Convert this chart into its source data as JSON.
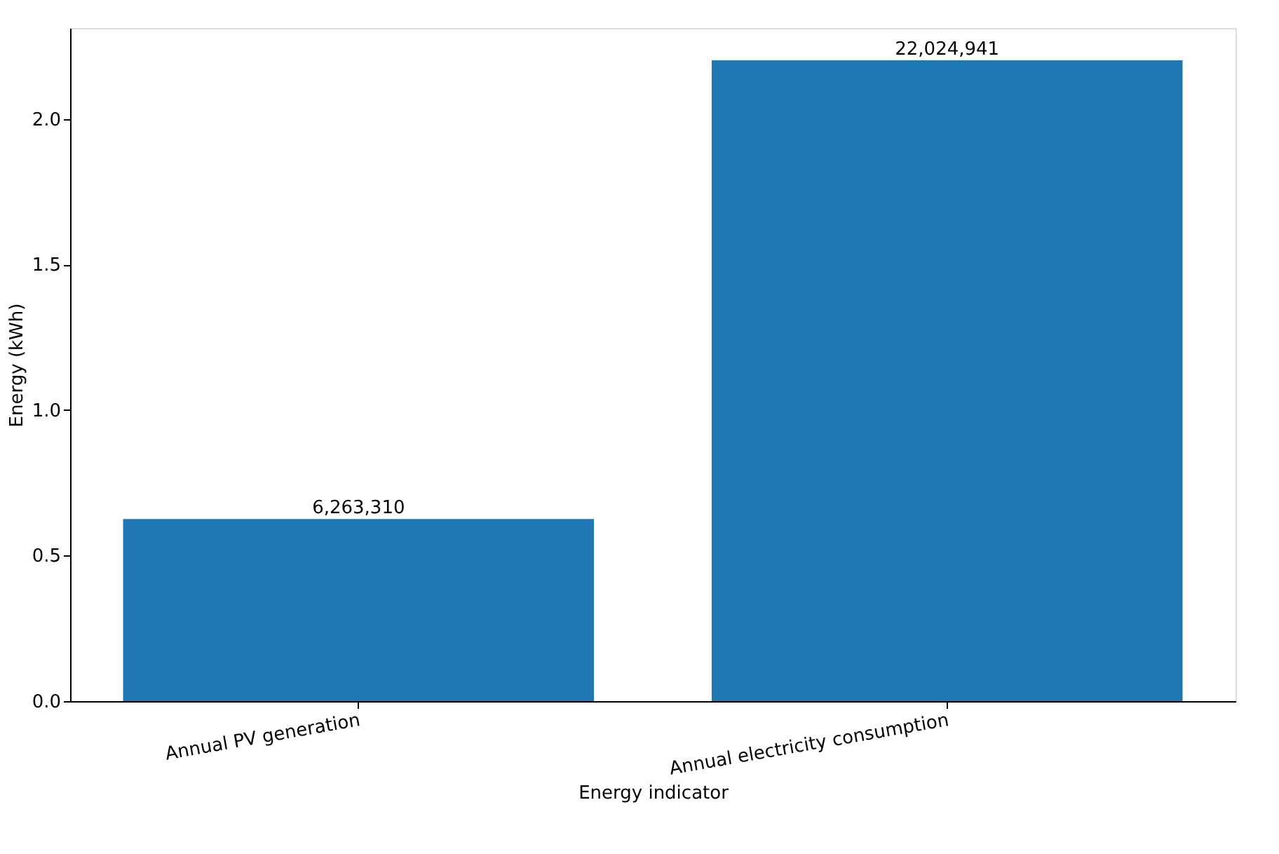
{
  "chart_data": {
    "type": "bar",
    "xlabel": "Energy indicator",
    "ylabel": "Energy (kWh)",
    "categories": [
      "Annual PV generation",
      "Annual electricity consumption"
    ],
    "values": [
      0.626,
      2.202
    ],
    "annotations": [
      "6,263,310",
      "22,024,941"
    ],
    "color": "#1f77b4",
    "ylim": [
      0,
      2.3126
    ],
    "yticks": [
      {
        "value": 0,
        "label": "0.0"
      },
      0.5,
      {
        "value": 1,
        "label": "1.0"
      },
      1.5,
      {
        "value": 2,
        "label": "2.0"
      }
    ],
    "grid": false
  }
}
